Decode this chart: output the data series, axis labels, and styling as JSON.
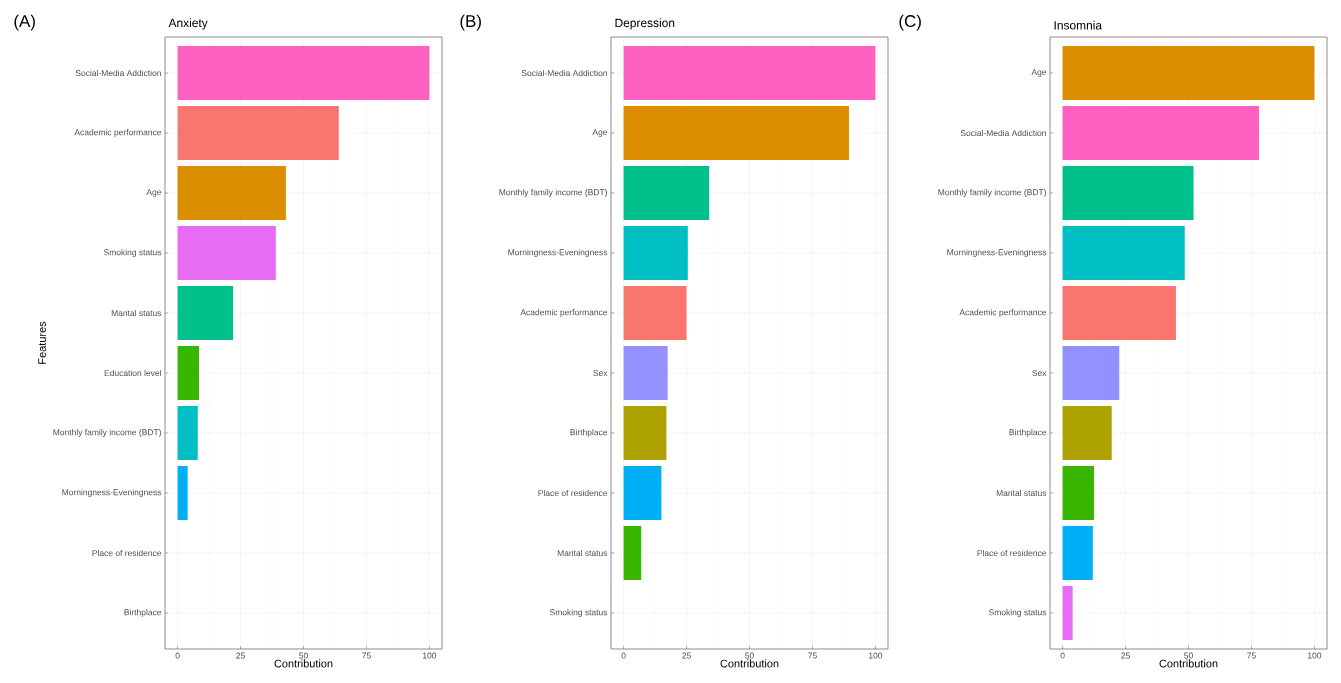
{
  "chart_data": [
    {
      "type": "bar",
      "orientation": "horizontal",
      "title": "Anxiety",
      "xlabel": "Contribution",
      "ylabel": "Features",
      "annotations": [
        "(A)"
      ],
      "grid": true,
      "categories": [
        "Social-Media Addiction",
        "Academic performance",
        "Age",
        "Smoking status",
        "Marital status",
        "Education level",
        "Monthly family income (BDT)",
        "Morningness-Eveningness",
        "Place of residence",
        "Birthplace"
      ],
      "values": [
        100,
        64,
        43,
        39,
        22,
        8.5,
        8,
        4,
        0,
        0
      ],
      "colors": [
        "#ff61c3",
        "#f8766d",
        "#db8e00",
        "#e76bf3",
        "#00c08b",
        "#39b600",
        "#00bfc4",
        "#00b0f6",
        "#9590ff",
        "#aea200"
      ],
      "xlim": [
        -5,
        105
      ],
      "xticks": [
        0,
        25,
        50,
        75,
        100
      ]
    },
    {
      "type": "bar",
      "orientation": "horizontal",
      "title": "Depression",
      "xlabel": "Contribution",
      "annotations": [
        "(B)"
      ],
      "grid": true,
      "categories": [
        "Social-Media Addiction",
        "Age",
        "Monthly family income (BDT)",
        "Morningness-Eveningness",
        "Academic performance",
        "Sex",
        "Birthplace",
        "Place of residence",
        "Marital status",
        "Smoking status"
      ],
      "values": [
        100,
        89.5,
        34,
        25.5,
        25,
        17.5,
        17,
        15,
        7,
        0
      ],
      "colors": [
        "#ff61c3",
        "#db8e00",
        "#00c08b",
        "#00bfc4",
        "#f8766d",
        "#9590ff",
        "#aea200",
        "#00b0f6",
        "#39b600",
        "#e76bf3"
      ],
      "xlim": [
        -5,
        105
      ],
      "xticks": [
        0,
        25,
        50,
        75,
        100
      ]
    },
    {
      "type": "bar",
      "orientation": "horizontal",
      "title": "Insomnia",
      "xlabel": "Contribution",
      "annotations": [
        "(C)"
      ],
      "grid": true,
      "categories": [
        "Age",
        "Social-Media Addiction",
        "Monthly family income (BDT)",
        "Morningness-Eveningness",
        "Academic performance",
        "Sex",
        "Birthplace",
        "Marital status",
        "Place of residence",
        "Smoking status"
      ],
      "values": [
        100,
        78,
        52,
        48.5,
        45,
        22.5,
        19.5,
        12.5,
        12,
        4
      ],
      "colors": [
        "#db8e00",
        "#ff61c3",
        "#00c08b",
        "#00bfc4",
        "#f8766d",
        "#9590ff",
        "#aea200",
        "#39b600",
        "#00b0f6",
        "#e76bf3"
      ],
      "xlim": [
        -5,
        105
      ],
      "xticks": [
        0,
        25,
        50,
        75,
        100
      ]
    }
  ]
}
